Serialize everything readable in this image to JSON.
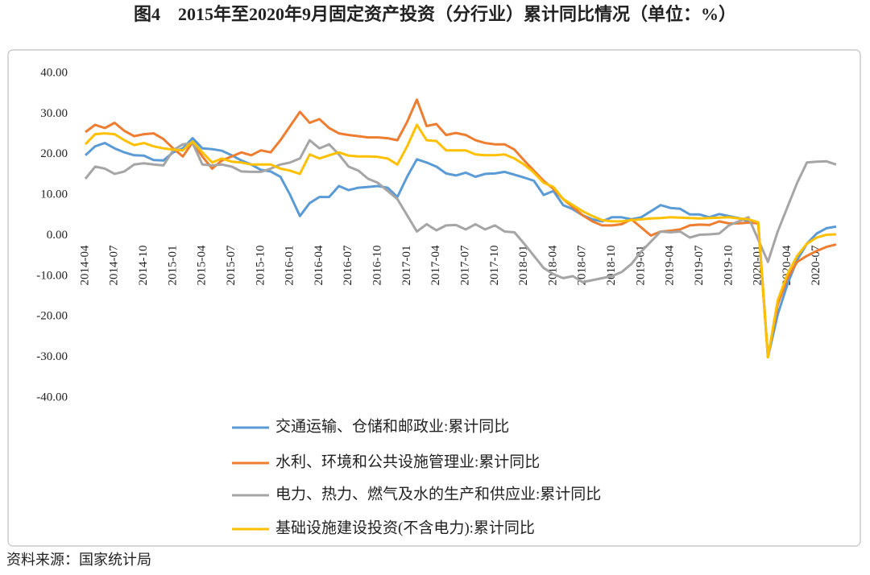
{
  "chart_data": {
    "type": "line",
    "title": "图4　2015年至2020年9月固定资产投资（分行业）累计同比情况（单位：%）",
    "source": "资料来源：国家统计局",
    "categories": [
      "2014-04",
      null,
      null,
      "2014-07",
      null,
      null,
      "2014-10",
      null,
      null,
      "2015-01",
      null,
      null,
      "2015-04",
      null,
      null,
      "2015-07",
      null,
      null,
      "2015-10",
      null,
      null,
      "2016-01",
      null,
      null,
      "2016-04",
      null,
      null,
      "2016-07",
      null,
      null,
      "2016-10",
      null,
      null,
      "2017-01",
      null,
      null,
      "2017-04",
      null,
      null,
      "2017-07",
      null,
      null,
      "2017-10",
      null,
      null,
      "2018-01",
      null,
      null,
      "2018-04",
      null,
      null,
      "2018-07",
      null,
      null,
      "2018-10",
      null,
      null,
      "2019-01",
      null,
      null,
      "2019-04",
      null,
      null,
      "2019-07",
      null,
      null,
      "2019-10",
      null,
      null,
      "2020-01",
      null,
      null,
      "2020-04",
      null,
      null,
      "2020-07",
      null,
      null
    ],
    "series": [
      {
        "name": "交通运输、仓储和邮政业:累计同比",
        "color": "#5b9bd5",
        "values": [
          19.8,
          22,
          22.8,
          21.5,
          20.5,
          19.8,
          19.7,
          18.6,
          18.5,
          20.5,
          21.5,
          24,
          21.5,
          21.3,
          20.9,
          19.8,
          18.5,
          17.5,
          16.2,
          15.8,
          14.5,
          10,
          4.8,
          8,
          9.5,
          9.5,
          12.2,
          11.2,
          11.8,
          12,
          12.2,
          11.8,
          9.5,
          14.5,
          18.8,
          18,
          17,
          15.3,
          14.8,
          15.5,
          14.5,
          15.2,
          15.3,
          15.7,
          15,
          14.3,
          13.5,
          10,
          11,
          7.5,
          6.5,
          5,
          4,
          3.5,
          4.5,
          4.5,
          4,
          4.5,
          6,
          7.5,
          6.8,
          6.6,
          5.2,
          5.2,
          4.5,
          5.3,
          4.8,
          4.3,
          3.5,
          3.2,
          -30,
          -19.5,
          -12,
          -6,
          -2,
          0.5,
          1.8,
          2.2
        ]
      },
      {
        "name": "水利、环境和公共设施管理业:累计同比",
        "color": "#ed7d31",
        "values": [
          25.5,
          27.3,
          26.5,
          27.8,
          25.8,
          24.5,
          25,
          25.2,
          23.8,
          21.5,
          19.5,
          23,
          19.5,
          16.5,
          18.5,
          19.5,
          20.5,
          19.8,
          21,
          20.5,
          23.5,
          27,
          30.5,
          27.8,
          28.7,
          26.5,
          25.2,
          24.8,
          24.5,
          24.2,
          24.2,
          24,
          23.5,
          28,
          33.5,
          27,
          27.5,
          24.8,
          25.3,
          24.8,
          23.5,
          22.8,
          22.5,
          22.5,
          21.2,
          18.5,
          16,
          13.5,
          11.5,
          9,
          7,
          5,
          3.5,
          2.5,
          2.5,
          2.8,
          4,
          2,
          0,
          1,
          1.2,
          1.5,
          2.5,
          2.7,
          2.6,
          3.5,
          3,
          3,
          3.2,
          3,
          -30,
          -17,
          -10.5,
          -6.5,
          -5,
          -3.8,
          -2.8,
          -2.2
        ]
      },
      {
        "name": "电力、热力、燃气及水的生产和供应业:累计同比",
        "color": "#a5a5a5",
        "values": [
          14,
          17,
          16.5,
          15.2,
          15.8,
          17.5,
          17.8,
          17.5,
          17.3,
          21,
          22.5,
          22.8,
          17.5,
          17.3,
          17.5,
          17,
          15.8,
          15.7,
          15.7,
          16.5,
          17.5,
          18,
          19,
          23.5,
          21.5,
          22.5,
          20,
          17,
          16,
          14,
          13,
          11,
          9,
          5,
          1,
          2.8,
          1.3,
          2.5,
          2.6,
          1.5,
          2.8,
          1.5,
          2.5,
          1,
          0.8,
          -2,
          -5,
          -8,
          -9.5,
          -10.5,
          -10,
          -11.5,
          -11,
          -10.5,
          -10,
          -9,
          -7,
          -4,
          -1.5,
          1,
          0.8,
          1,
          -0.5,
          0.2,
          0.3,
          0.5,
          2.5,
          3.5,
          4.5,
          -1,
          -6.5,
          1,
          7,
          13,
          18,
          18.2,
          18.3,
          17.5
        ]
      },
      {
        "name": "基础设施建设投资(不含电力):累计同比",
        "color": "#ffc000",
        "values": [
          22.5,
          25,
          25.2,
          25,
          23.5,
          22.3,
          22.8,
          22,
          21.5,
          21.2,
          21,
          23.2,
          20.5,
          18,
          19,
          18.2,
          18,
          17.5,
          17.5,
          17.5,
          16.5,
          16,
          15.2,
          20,
          19,
          19.8,
          20.5,
          19.7,
          19.5,
          19.5,
          19.4,
          19,
          17.5,
          22,
          27.3,
          23.5,
          23.3,
          21,
          21,
          21,
          20,
          19.8,
          19.8,
          20,
          19,
          17.5,
          15.5,
          13,
          12,
          9,
          7.5,
          6,
          4.8,
          3.8,
          3.5,
          3.5,
          3.8,
          4,
          4.2,
          4.3,
          4.5,
          4.4,
          4.3,
          4.2,
          4.3,
          4.4,
          4.5,
          4.2,
          4,
          3.3,
          -30,
          -16,
          -9.5,
          -5,
          -2,
          -0.5,
          0.2,
          0.3
        ]
      }
    ],
    "ylim": [
      -40,
      40
    ],
    "yticks": [
      {
        "value": -40,
        "label": "-40.00"
      },
      {
        "value": -30,
        "label": "-30.00"
      },
      {
        "value": -20,
        "label": "-20.00"
      },
      {
        "value": -10,
        "label": "-10.00"
      },
      {
        "value": 0,
        "label": "0.00"
      },
      {
        "value": 10,
        "label": "10.00"
      },
      {
        "value": 20,
        "label": "20.00"
      },
      {
        "value": 30,
        "label": "30.00"
      },
      {
        "value": 40,
        "label": "40.00"
      }
    ],
    "grid": false,
    "legend": "bottom"
  }
}
